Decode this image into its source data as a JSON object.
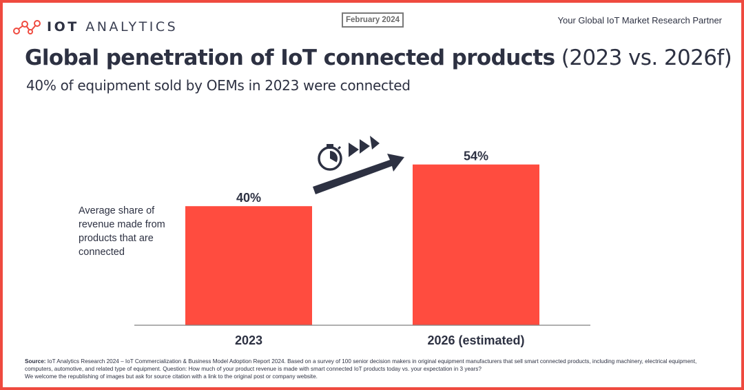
{
  "header": {
    "logo_text_bold": "IOT",
    "logo_text_light": "ANALYTICS",
    "date_badge": "February 2024",
    "tagline": "Your Global IoT Market Research Partner",
    "brand_color": "#ef4a3f"
  },
  "title": {
    "main": "Global penetration of IoT connected products",
    "suffix": "(2023 vs. 2026f)",
    "subtitle": "40% of equipment sold by OEMs in 2023 were connected"
  },
  "y_label": "Average share of revenue made from products that are connected",
  "icons": [
    "stopwatch-icon",
    "fast-forward-icon",
    "growth-arrow-icon"
  ],
  "chart_data": {
    "type": "bar",
    "title": "Global penetration of IoT connected products (2023 vs. 2026f)",
    "ylabel": "Average share of revenue made from products that are connected",
    "categories": [
      "2023",
      "2026 (estimated)"
    ],
    "values": [
      40,
      54
    ],
    "value_labels": [
      "40%",
      "54%"
    ],
    "unit": "%",
    "bar_color": "#ff4c3f",
    "grid": false
  },
  "footer": {
    "source_label": "Source:",
    "source_text": " IoT Analytics Research 2024 – IoT Commercialization & Business Model Adoption Report 2024. Based on a survey of 100 senior decision makers in original equipment manufacturers that sell smart connected products, including machinery, electrical equipment, computers, automotive, and related type of equipment. Question: How much of your product revenue is made with smart connected IoT products today vs. your expectation in 3 years?",
    "republish_text": "We welcome the republishing of images but ask for source citation with a link to the original post or company website."
  }
}
